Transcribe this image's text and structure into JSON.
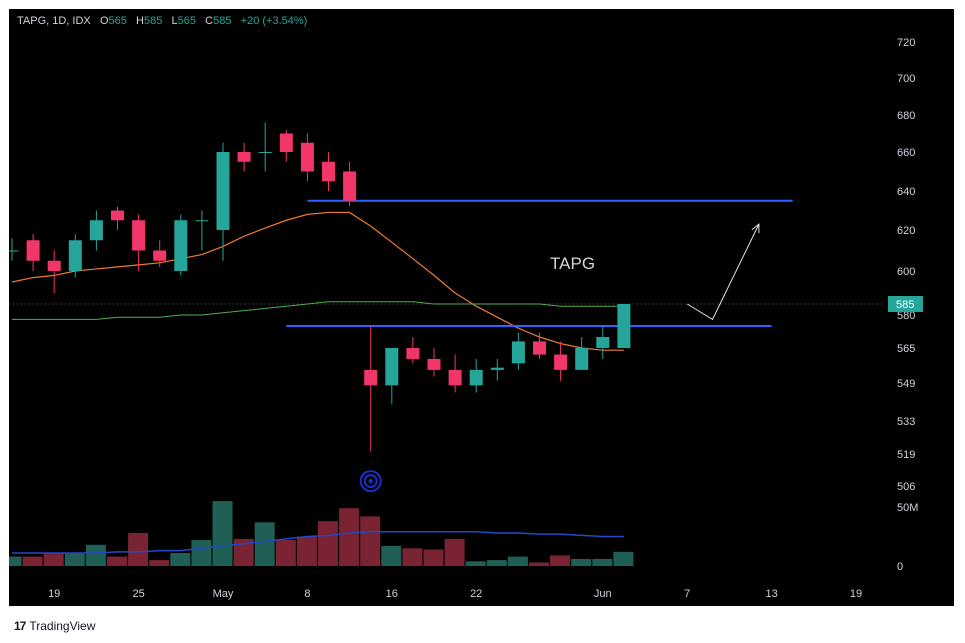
{
  "header": {
    "symbol": "TAPG, 1D, IDX",
    "o_label": "O",
    "o_value": "565",
    "h_label": "H",
    "h_value": "585",
    "l_label": "L",
    "l_value": "565",
    "c_label": "C",
    "c_value": "585",
    "change": "+20 (+3.54%)"
  },
  "branding": {
    "logo_text": "17",
    "name": "TradingView"
  },
  "colors": {
    "up": "#26a69a",
    "down": "#f23669",
    "level": "#2962ff",
    "ema_fast": "#f07b2f",
    "ema_slow": "#4caf50",
    "volume_ma": "#2448c8",
    "price_tag": "#26a69a"
  },
  "chart_data": {
    "type": "candlestick",
    "ylim": [
      506,
      720
    ],
    "y_ticks": [
      "720",
      "700",
      "680",
      "660",
      "640",
      "620",
      "600",
      "580",
      "565",
      "549",
      "533",
      "519",
      "506"
    ],
    "y_tick_values": [
      720,
      700,
      680,
      660,
      640,
      620,
      600,
      580,
      565,
      549,
      533,
      519,
      506
    ],
    "volume_tick_labels": [
      "50M",
      "0"
    ],
    "volume_ylim": [
      0,
      50
    ],
    "x_tick_labels": [
      "19",
      "25",
      "May",
      "8",
      "16",
      "22",
      "Jun",
      "7",
      "13",
      "19"
    ],
    "last_price_label": "585",
    "candles": [
      {
        "o": 610,
        "h": 616,
        "l": 605,
        "c": 610,
        "v": 8
      },
      {
        "o": 615,
        "h": 618,
        "l": 600,
        "c": 605,
        "v": 8
      },
      {
        "o": 605,
        "h": 610,
        "l": 590,
        "c": 600,
        "v": 11
      },
      {
        "o": 600,
        "h": 618,
        "l": 597,
        "c": 615,
        "v": 11
      },
      {
        "o": 615,
        "h": 630,
        "l": 610,
        "c": 625,
        "v": 18
      },
      {
        "o": 630,
        "h": 632,
        "l": 620,
        "c": 625,
        "v": 8
      },
      {
        "o": 625,
        "h": 628,
        "l": 600,
        "c": 610,
        "v": 28
      },
      {
        "o": 610,
        "h": 615,
        "l": 602,
        "c": 605,
        "v": 5
      },
      {
        "o": 600,
        "h": 628,
        "l": 598,
        "c": 625,
        "v": 11
      },
      {
        "o": 625,
        "h": 630,
        "l": 610,
        "c": 625,
        "v": 22
      },
      {
        "o": 620,
        "h": 665,
        "l": 605,
        "c": 660,
        "v": 55
      },
      {
        "o": 660,
        "h": 665,
        "l": 650,
        "c": 655,
        "v": 23
      },
      {
        "o": 660,
        "h": 676,
        "l": 650,
        "c": 660,
        "v": 37
      },
      {
        "o": 670,
        "h": 672,
        "l": 655,
        "c": 660,
        "v": 22
      },
      {
        "o": 665,
        "h": 670,
        "l": 645,
        "c": 650,
        "v": 25
      },
      {
        "o": 655,
        "h": 660,
        "l": 640,
        "c": 645,
        "v": 38
      },
      {
        "o": 650,
        "h": 655,
        "l": 632,
        "c": 635,
        "v": 49
      },
      {
        "o": 555,
        "h": 575,
        "l": 520,
        "c": 548,
        "v": 42
      },
      {
        "o": 548,
        "h": 565,
        "l": 540,
        "c": 565,
        "v": 17
      },
      {
        "o": 565,
        "h": 570,
        "l": 558,
        "c": 560,
        "v": 15
      },
      {
        "o": 560,
        "h": 565,
        "l": 552,
        "c": 555,
        "v": 14
      },
      {
        "o": 555,
        "h": 562,
        "l": 545,
        "c": 548,
        "v": 23
      },
      {
        "o": 548,
        "h": 560,
        "l": 545,
        "c": 555,
        "v": 4
      },
      {
        "o": 555,
        "h": 560,
        "l": 550,
        "c": 556,
        "v": 5
      },
      {
        "o": 558,
        "h": 572,
        "l": 555,
        "c": 568,
        "v": 8
      },
      {
        "o": 568,
        "h": 572,
        "l": 560,
        "c": 562,
        "v": 3
      },
      {
        "o": 562,
        "h": 568,
        "l": 550,
        "c": 555,
        "v": 9
      },
      {
        "o": 555,
        "h": 570,
        "l": 555,
        "c": 565,
        "v": 6
      },
      {
        "o": 565,
        "h": 575,
        "l": 560,
        "c": 570,
        "v": 6
      },
      {
        "o": 565,
        "h": 585,
        "l": 565,
        "c": 585,
        "v": 12
      }
    ],
    "ema_fast": [
      595,
      597,
      598,
      600,
      601,
      602,
      603,
      604,
      606,
      608,
      612,
      617,
      621,
      625,
      628,
      629,
      629,
      622,
      614,
      606,
      598,
      590,
      584,
      579,
      574,
      570,
      567,
      565,
      564,
      564
    ],
    "ema_slow": [
      578,
      578,
      578,
      578,
      578,
      579,
      579,
      579,
      580,
      580,
      581,
      582,
      583,
      584,
      585,
      586,
      586,
      586,
      586,
      586,
      585,
      585,
      585,
      585,
      585,
      585,
      584,
      584,
      584,
      584
    ],
    "volume_ma": [
      11,
      11,
      11,
      11,
      11,
      12,
      12,
      13,
      13,
      15,
      17,
      19,
      21,
      23,
      25,
      26,
      28,
      29,
      29,
      29,
      29,
      29,
      29,
      28,
      28,
      27,
      27,
      26,
      25,
      25
    ],
    "levels": [
      {
        "value": 635,
        "from_bar": 14,
        "to_bar": 37
      },
      {
        "value": 575,
        "from_bar": 13,
        "to_bar": 36
      }
    ],
    "arrow": {
      "points": [
        {
          "bar": 32,
          "price": 585
        },
        {
          "bar": 33.2,
          "price": 578
        },
        {
          "bar": 35.4,
          "price": 623
        }
      ]
    },
    "annotation": {
      "text": "TAPG",
      "bar": 25.5,
      "price": 601
    },
    "marker": {
      "bar": 17,
      "price": 508
    }
  }
}
